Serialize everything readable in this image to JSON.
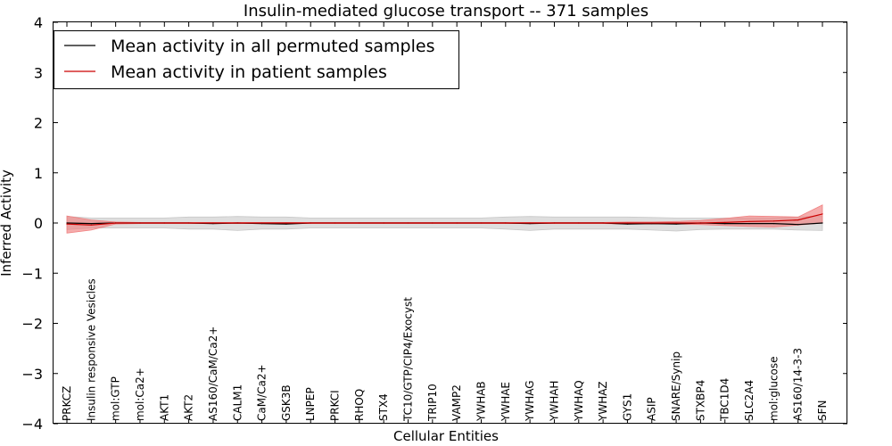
{
  "chart_data": {
    "type": "line",
    "title": "Insulin-mediated glucose transport -- 371 samples",
    "xlabel": "Cellular Entities",
    "ylabel": "Inferred Activity",
    "ylim": [
      -4,
      4
    ],
    "yticks": [
      {
        "value": 4,
        "label": "4"
      },
      {
        "value": 3,
        "label": "3"
      },
      {
        "value": 2,
        "label": "2"
      },
      {
        "value": 1,
        "label": "1"
      },
      {
        "value": 0,
        "label": "0"
      },
      {
        "value": -1,
        "label": "−1"
      },
      {
        "value": -2,
        "label": "−2"
      },
      {
        "value": -3,
        "label": "−3"
      },
      {
        "value": -4,
        "label": "−4"
      }
    ],
    "categories": [
      "PRKCZ",
      "Insulin responsive Vesicles",
      "mol:GTP",
      "mol:Ca2+",
      "AKT1",
      "AKT2",
      "AS160/CaM/Ca2+",
      "CALM1",
      "CaM/Ca2+",
      "GSK3B",
      "LNPEP",
      "PRKCI",
      "RHOQ",
      "STX4",
      "TC10/GTP/CIP4/Exocyst",
      "TRIP10",
      "VAMP2",
      "YWHAB",
      "YWHAE",
      "YWHAG",
      "YWHAH",
      "YWHAQ",
      "YWHAZ",
      "GYS1",
      "ASIP",
      "SNARE/Synip",
      "STXBP4",
      "TBC1D4",
      "SLC2A4",
      "mol:glucose",
      "AS160/14-3-3",
      "SFN"
    ],
    "legend": {
      "position": "top-left",
      "entries": [
        {
          "label": "Mean activity in all permuted samples",
          "color": "#000000"
        },
        {
          "label": "Mean activity in patient samples",
          "color": "#cc0000"
        }
      ]
    },
    "series": [
      {
        "name": "Mean activity in all permuted samples",
        "color": "#000000",
        "band_color": "#c8c8c8",
        "values": [
          0.0,
          -0.01,
          0.0,
          0.0,
          0.0,
          0.0,
          -0.01,
          0.0,
          -0.01,
          -0.02,
          0.0,
          0.0,
          0.0,
          0.0,
          0.0,
          0.0,
          0.0,
          0.0,
          0.0,
          -0.01,
          0.0,
          0.0,
          0.0,
          -0.02,
          -0.01,
          -0.02,
          0.0,
          -0.01,
          -0.01,
          -0.01,
          -0.03,
          0.0
        ],
        "band_lower": [
          -0.13,
          -0.1,
          -0.1,
          -0.1,
          -0.1,
          -0.12,
          -0.12,
          -0.15,
          -0.12,
          -0.12,
          -0.1,
          -0.1,
          -0.1,
          -0.1,
          -0.1,
          -0.1,
          -0.1,
          -0.1,
          -0.12,
          -0.15,
          -0.12,
          -0.12,
          -0.12,
          -0.12,
          -0.14,
          -0.16,
          -0.13,
          -0.12,
          -0.12,
          -0.12,
          -0.14,
          -0.15
        ],
        "band_upper": [
          0.13,
          0.1,
          0.1,
          0.1,
          0.1,
          0.12,
          0.12,
          0.13,
          0.12,
          0.12,
          0.1,
          0.1,
          0.1,
          0.1,
          0.1,
          0.1,
          0.1,
          0.1,
          0.12,
          0.13,
          0.12,
          0.12,
          0.12,
          0.12,
          0.11,
          0.1,
          0.1,
          0.1,
          0.1,
          0.1,
          0.12,
          0.14
        ]
      },
      {
        "name": "Mean activity in patient samples",
        "color": "#cc0000",
        "band_color": "#f08080",
        "values": [
          -0.02,
          -0.04,
          0.0,
          0.0,
          0.0,
          0.0,
          0.0,
          0.0,
          0.0,
          0.0,
          0.0,
          0.0,
          0.0,
          0.0,
          0.0,
          0.0,
          0.0,
          0.0,
          0.0,
          0.0,
          0.0,
          0.0,
          0.0,
          0.0,
          0.0,
          0.0,
          0.0,
          0.01,
          0.03,
          0.04,
          0.06,
          0.18
        ],
        "band_lower": [
          -0.2,
          -0.14,
          -0.02,
          -0.01,
          -0.01,
          -0.01,
          -0.01,
          -0.01,
          -0.01,
          -0.01,
          -0.01,
          -0.01,
          -0.01,
          -0.01,
          -0.01,
          -0.01,
          -0.01,
          -0.01,
          -0.01,
          -0.01,
          -0.01,
          -0.01,
          -0.01,
          -0.02,
          -0.02,
          -0.02,
          -0.03,
          -0.05,
          -0.07,
          -0.08,
          -0.04,
          0.0
        ],
        "band_upper": [
          0.14,
          0.06,
          0.02,
          0.01,
          0.01,
          0.01,
          0.01,
          0.01,
          0.01,
          0.01,
          0.01,
          0.01,
          0.01,
          0.01,
          0.01,
          0.01,
          0.01,
          0.01,
          0.01,
          0.01,
          0.01,
          0.01,
          0.01,
          0.02,
          0.02,
          0.03,
          0.05,
          0.09,
          0.14,
          0.13,
          0.12,
          0.36
        ]
      }
    ]
  }
}
